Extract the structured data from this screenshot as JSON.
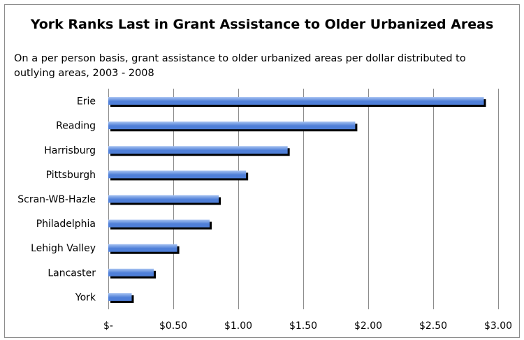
{
  "chart_data": {
    "type": "bar",
    "orientation": "horizontal",
    "title": "York Ranks Last in Grant Assistance to Older Urbanized Areas",
    "subtitle": "On a per person basis, grant assistance to older urbanized areas per dollar distributed to outlying areas, 2003 - 2008",
    "categories": [
      "Erie",
      "Reading",
      "Harrisburg",
      "Pittsburgh",
      "Scran-WB-Hazle",
      "Philadelphia",
      "Lehigh Valley",
      "Lancaster",
      "York"
    ],
    "values": [
      2.89,
      1.9,
      1.38,
      1.06,
      0.85,
      0.78,
      0.53,
      0.35,
      0.18
    ],
    "xlim": [
      0,
      3.0
    ],
    "x_ticks": [
      0,
      0.5,
      1.0,
      1.5,
      2.0,
      2.5,
      3.0
    ],
    "x_tick_labels": [
      "$-",
      "$0.50",
      "$1.00",
      "$1.50",
      "$2.00",
      "$2.50",
      "$3.00"
    ],
    "xlabel": "",
    "ylabel": "",
    "grid": "vertical",
    "legend": "none",
    "colors": {
      "bar_fill_light": "#a7c3f2",
      "bar_fill_dark": "#4f7fd8",
      "bar_shadow": "#000000",
      "gridline": "#8c8c8c"
    }
  }
}
